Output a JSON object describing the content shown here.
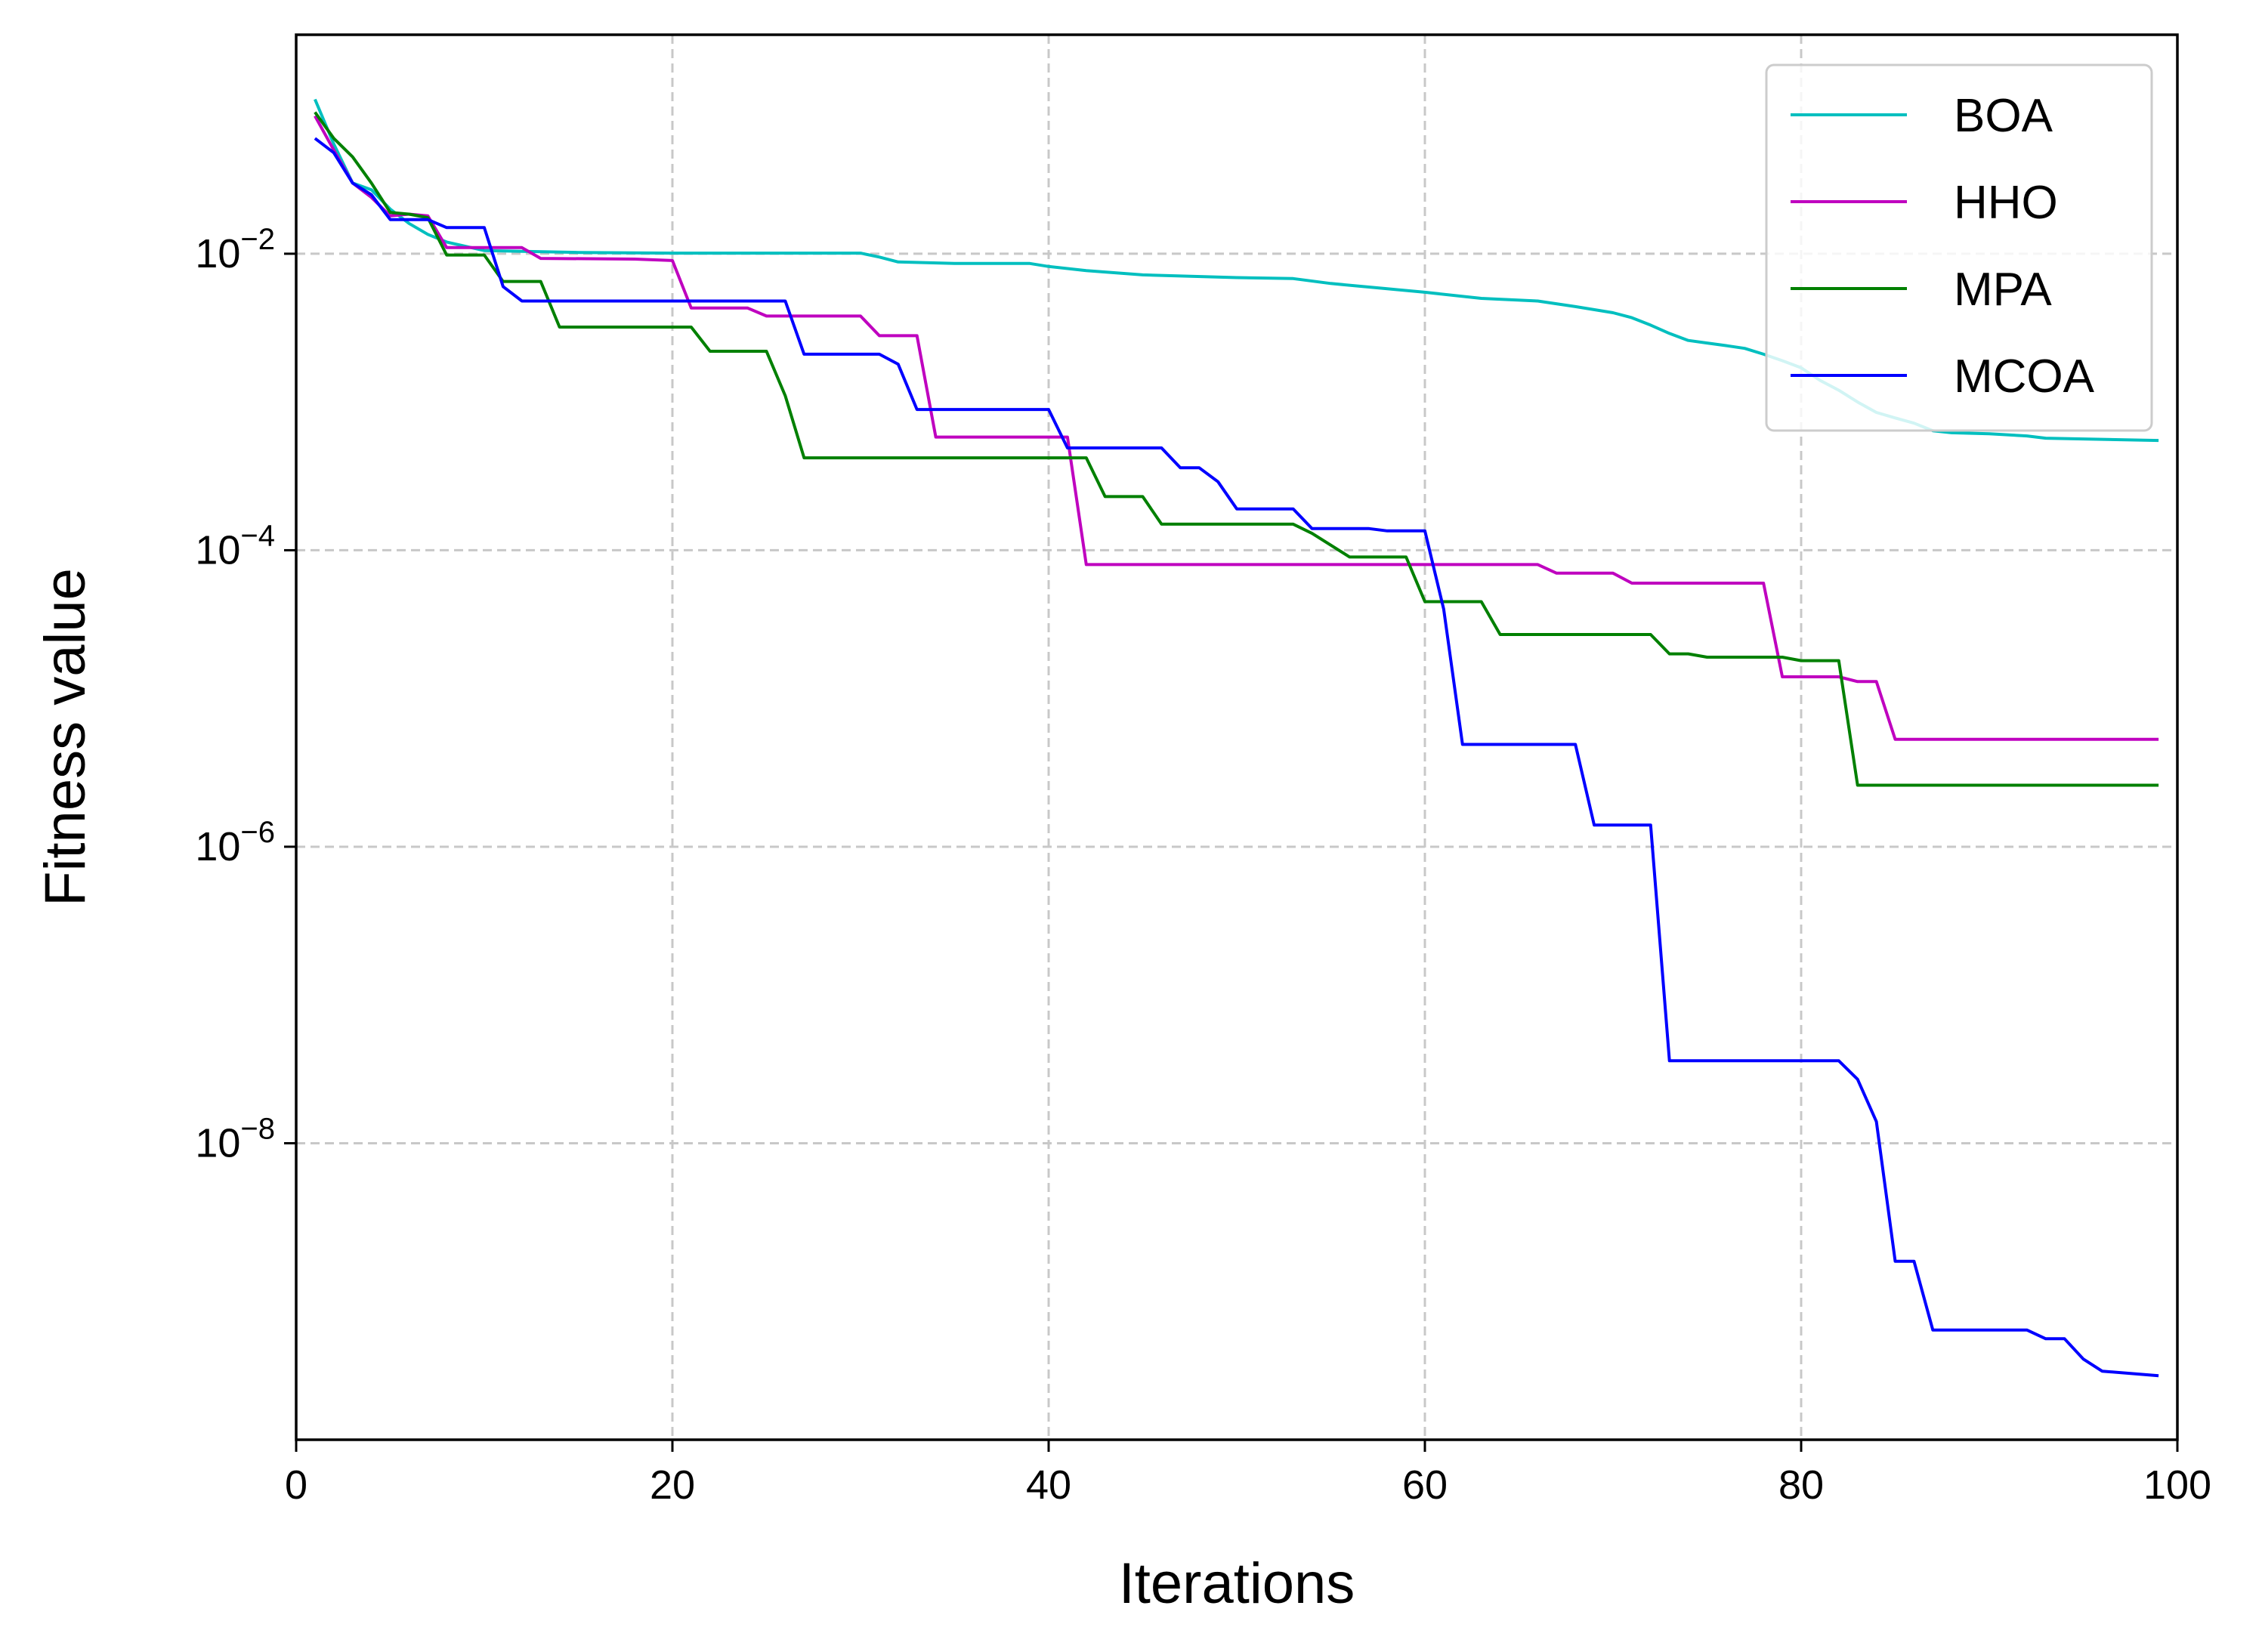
{
  "chart_data": {
    "type": "line",
    "title": "",
    "xlabel": "Iterations",
    "ylabel": "Fitness value",
    "xlim": [
      0,
      100
    ],
    "ylim": [
      1e-10,
      0.3
    ],
    "yscale": "log",
    "grid": true,
    "legend_position": "top-right",
    "xticks": [
      0,
      20,
      40,
      60,
      80,
      100
    ],
    "xtick_labels": [
      "0",
      "20",
      "40",
      "60",
      "80",
      "100"
    ],
    "yticks": [
      1e-08,
      1e-06,
      0.0001,
      0.01
    ],
    "ytick_labels": [
      {
        "base": "10",
        "exp": "−8"
      },
      {
        "base": "10",
        "exp": "−6"
      },
      {
        "base": "10",
        "exp": "−4"
      },
      {
        "base": "10",
        "exp": "−2"
      }
    ],
    "series": [
      {
        "name": "BOA",
        "color": "#00bfbf",
        "points": [
          [
            1,
            0.11
          ],
          [
            2,
            0.055
          ],
          [
            3,
            0.03
          ],
          [
            4,
            0.027
          ],
          [
            5,
            0.02
          ],
          [
            6,
            0.016
          ],
          [
            7,
            0.0135
          ],
          [
            8,
            0.012
          ],
          [
            10,
            0.0105
          ],
          [
            15,
            0.0102
          ],
          [
            20,
            0.0101
          ],
          [
            25,
            0.0101
          ],
          [
            30,
            0.0101
          ],
          [
            31,
            0.0095
          ],
          [
            32,
            0.0088
          ],
          [
            35,
            0.0086
          ],
          [
            39,
            0.0086
          ],
          [
            40,
            0.0082
          ],
          [
            42,
            0.0077
          ],
          [
            45,
            0.0072
          ],
          [
            50,
            0.0069
          ],
          [
            53,
            0.0068
          ],
          [
            55,
            0.0063
          ],
          [
            58,
            0.0058
          ],
          [
            60,
            0.0055
          ],
          [
            63,
            0.005
          ],
          [
            66,
            0.0048
          ],
          [
            68,
            0.0044
          ],
          [
            70,
            0.004
          ],
          [
            71,
            0.0037
          ],
          [
            72,
            0.0033
          ],
          [
            73,
            0.0029
          ],
          [
            74,
            0.0026
          ],
          [
            75,
            0.0025
          ],
          [
            76,
            0.0024
          ],
          [
            77,
            0.0023
          ],
          [
            78,
            0.0021
          ],
          [
            79,
            0.0019
          ],
          [
            80,
            0.0017
          ],
          [
            81,
            0.0014
          ],
          [
            82,
            0.0012
          ],
          [
            83,
            0.001
          ],
          [
            84,
            0.00085
          ],
          [
            85,
            0.00078
          ],
          [
            86,
            0.00072
          ],
          [
            87,
            0.00064
          ],
          [
            88,
            0.00062
          ],
          [
            90,
            0.00061
          ],
          [
            92,
            0.00059
          ],
          [
            93,
            0.00057
          ],
          [
            96,
            0.00056
          ],
          [
            99,
            0.00055
          ]
        ]
      },
      {
        "name": "HHO",
        "color": "#bf00bf",
        "points": [
          [
            1,
            0.085
          ],
          [
            2,
            0.05
          ],
          [
            3,
            0.03
          ],
          [
            4,
            0.024
          ],
          [
            5,
            0.018
          ],
          [
            6,
            0.0185
          ],
          [
            7,
            0.018
          ],
          [
            8,
            0.011
          ],
          [
            9,
            0.011
          ],
          [
            12,
            0.011
          ],
          [
            13,
            0.0093
          ],
          [
            18,
            0.0092
          ],
          [
            20,
            0.009
          ],
          [
            21,
            0.0043
          ],
          [
            24,
            0.0043
          ],
          [
            25,
            0.0038
          ],
          [
            30,
            0.0038
          ],
          [
            31,
            0.0028
          ],
          [
            33,
            0.0028
          ],
          [
            34,
            0.00058
          ],
          [
            40,
            0.00058
          ],
          [
            41,
            0.00058
          ],
          [
            42,
            8e-05
          ],
          [
            66,
            8e-05
          ],
          [
            67,
            7e-05
          ],
          [
            70,
            7e-05
          ],
          [
            71,
            6e-05
          ],
          [
            78,
            6e-05
          ],
          [
            79,
            1.4e-05
          ],
          [
            82,
            1.4e-05
          ],
          [
            83,
            1.3e-05
          ],
          [
            84,
            1.3e-05
          ],
          [
            85,
            5.3e-06
          ],
          [
            99,
            5.3e-06
          ]
        ]
      },
      {
        "name": "MPA",
        "color": "#008000",
        "points": [
          [
            1,
            0.09
          ],
          [
            2,
            0.06
          ],
          [
            3,
            0.045
          ],
          [
            4,
            0.03
          ],
          [
            5,
            0.019
          ],
          [
            6,
            0.0185
          ],
          [
            7,
            0.0175
          ],
          [
            8,
            0.0098
          ],
          [
            10,
            0.0098
          ],
          [
            11,
            0.0065
          ],
          [
            13,
            0.0065
          ],
          [
            14,
            0.0032
          ],
          [
            21,
            0.0032
          ],
          [
            22,
            0.0022
          ],
          [
            25,
            0.0022
          ],
          [
            26,
            0.0011
          ],
          [
            27,
            0.00042
          ],
          [
            41,
            0.00042
          ],
          [
            42,
            0.00042
          ],
          [
            43,
            0.00023
          ],
          [
            45,
            0.00023
          ],
          [
            46,
            0.00015
          ],
          [
            53,
            0.00015
          ],
          [
            54,
            0.00013
          ],
          [
            56,
            9e-05
          ],
          [
            59,
            9e-05
          ],
          [
            60,
            4.5e-05
          ],
          [
            63,
            4.5e-05
          ],
          [
            64,
            2.7e-05
          ],
          [
            72,
            2.7e-05
          ],
          [
            73,
            2e-05
          ],
          [
            74,
            2e-05
          ],
          [
            75,
            1.9e-05
          ],
          [
            79,
            1.9e-05
          ],
          [
            80,
            1.8e-05
          ],
          [
            82,
            1.8e-05
          ],
          [
            83,
            2.6e-06
          ],
          [
            99,
            2.6e-06
          ]
        ]
      },
      {
        "name": "MCOA",
        "color": "#0000ff",
        "points": [
          [
            1,
            0.06
          ],
          [
            2,
            0.048
          ],
          [
            3,
            0.03
          ],
          [
            4,
            0.025
          ],
          [
            5,
            0.017
          ],
          [
            7,
            0.017
          ],
          [
            8,
            0.015
          ],
          [
            10,
            0.015
          ],
          [
            11,
            0.006
          ],
          [
            12,
            0.0048
          ],
          [
            26,
            0.0048
          ],
          [
            27,
            0.0021
          ],
          [
            31,
            0.0021
          ],
          [
            32,
            0.0018
          ],
          [
            33,
            0.00089
          ],
          [
            40,
            0.00089
          ],
          [
            41,
            0.00049
          ],
          [
            46,
            0.00049
          ],
          [
            47,
            0.00036
          ],
          [
            48,
            0.00036
          ],
          [
            49,
            0.00029
          ],
          [
            50,
            0.00019
          ],
          [
            53,
            0.00019
          ],
          [
            54,
            0.00014
          ],
          [
            57,
            0.00014
          ],
          [
            58,
            0.000135
          ],
          [
            60,
            0.000135
          ],
          [
            61,
            4e-05
          ],
          [
            62,
            4.9e-06
          ],
          [
            68,
            4.9e-06
          ],
          [
            69,
            1.4e-06
          ],
          [
            72,
            1.4e-06
          ],
          [
            73,
            3.6e-08
          ],
          [
            82,
            3.6e-08
          ],
          [
            83,
            2.7e-08
          ],
          [
            84,
            1.4e-08
          ],
          [
            85,
            1.6e-09
          ],
          [
            86,
            1.6e-09
          ],
          [
            87,
            5.5e-10
          ],
          [
            92,
            5.5e-10
          ],
          [
            93,
            4.8e-10
          ],
          [
            94,
            4.8e-10
          ],
          [
            95,
            3.5e-10
          ],
          [
            96,
            2.9e-10
          ],
          [
            99,
            2.7e-10
          ]
        ]
      }
    ]
  }
}
